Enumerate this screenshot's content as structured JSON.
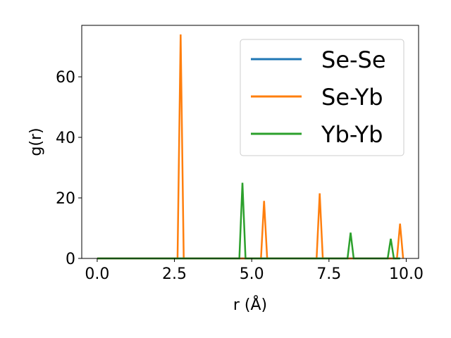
{
  "chart_data": {
    "type": "line",
    "xlabel": "r (Å)",
    "ylabel": "g(r)",
    "xlim": [
      -0.5,
      10.4
    ],
    "ylim": [
      0,
      77
    ],
    "xticks": [
      0.0,
      2.5,
      5.0,
      7.5,
      10.0
    ],
    "xtick_labels": [
      "0.0",
      "2.5",
      "5.0",
      "7.5",
      "10.0"
    ],
    "yticks": [
      0,
      20,
      40,
      60
    ],
    "ytick_labels": [
      "0",
      "20",
      "40",
      "60"
    ],
    "grid": false,
    "legend_position": "top-right",
    "series": [
      {
        "name": "Se-Se",
        "color": "#1f77b4",
        "x": [
          0.0,
          9.8
        ],
        "y": [
          0,
          0
        ]
      },
      {
        "name": "Se-Yb",
        "color": "#ff7f0e",
        "x": [
          0.0,
          2.6,
          2.7,
          2.8,
          5.3,
          5.4,
          5.5,
          7.1,
          7.2,
          7.3,
          9.7,
          9.8,
          9.9
        ],
        "y": [
          0,
          0,
          74,
          0,
          0,
          19,
          0,
          0,
          21.5,
          0,
          0,
          11.5,
          0
        ]
      },
      {
        "name": "Yb-Yb",
        "color": "#2ca02c",
        "x": [
          0.0,
          4.6,
          4.7,
          4.8,
          8.1,
          8.2,
          8.3,
          9.4,
          9.5,
          9.6,
          9.8
        ],
        "y": [
          0,
          0,
          25,
          0,
          0,
          8.5,
          0,
          0,
          6.5,
          0,
          0
        ]
      }
    ]
  }
}
